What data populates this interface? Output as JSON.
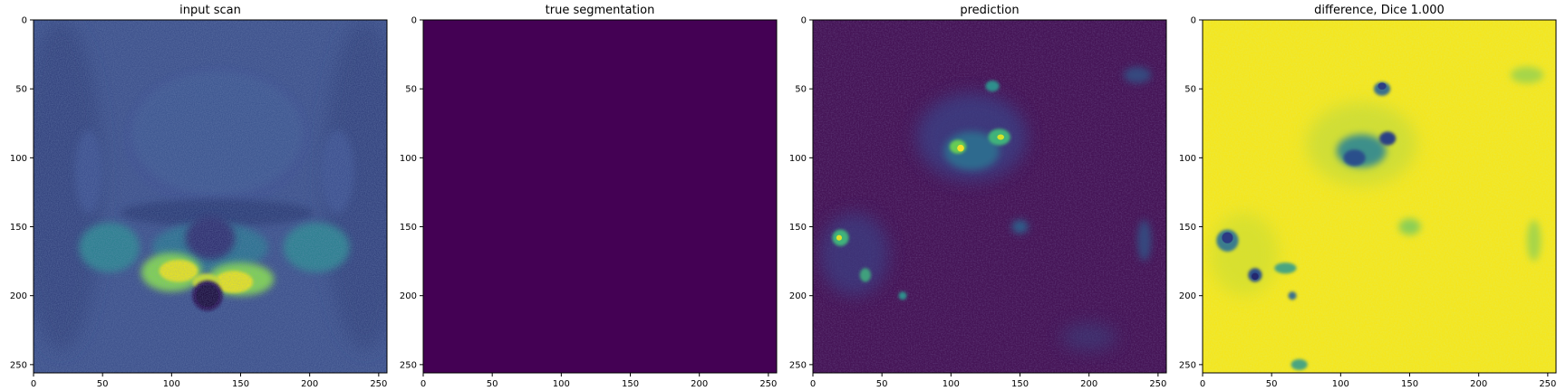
{
  "colors": {
    "viridis_dark": "#440154",
    "viridis_blue": "#3b528b",
    "viridis_teal": "#21918c",
    "viridis_green": "#5ec962",
    "viridis_yellow": "#fde725",
    "frame": "#000000",
    "background": "#ffffff"
  },
  "chart_data": [
    {
      "type": "heatmap",
      "title": "input scan",
      "xlabel": "",
      "ylabel": "",
      "xlim": [
        0,
        256
      ],
      "ylim": [
        256,
        0
      ],
      "xticks": [
        0,
        50,
        100,
        150,
        200,
        250
      ],
      "yticks": [
        0,
        50,
        100,
        150,
        200,
        250
      ],
      "colormap": "viridis",
      "content": "mri"
    },
    {
      "type": "heatmap",
      "title": "true segmentation",
      "xlabel": "",
      "ylabel": "",
      "xlim": [
        0,
        256
      ],
      "ylim": [
        256,
        0
      ],
      "xticks": [
        0,
        50,
        100,
        150,
        200,
        250
      ],
      "yticks": [
        0,
        50,
        100,
        150,
        200,
        250
      ],
      "colormap": "viridis",
      "content": "uniform-zero"
    },
    {
      "type": "heatmap",
      "title": "prediction",
      "xlabel": "",
      "ylabel": "",
      "xlim": [
        0,
        256
      ],
      "ylim": [
        256,
        0
      ],
      "xticks": [
        0,
        50,
        100,
        150,
        200,
        250
      ],
      "yticks": [
        0,
        50,
        100,
        150,
        200,
        250
      ],
      "colormap": "viridis",
      "content": "prediction"
    },
    {
      "type": "heatmap",
      "title": "difference, Dice 1.000",
      "xlabel": "",
      "ylabel": "",
      "xlim": [
        0,
        256
      ],
      "ylim": [
        256,
        0
      ],
      "xticks": [
        0,
        50,
        100,
        150,
        200,
        250
      ],
      "yticks": [
        0,
        50,
        100,
        150,
        200,
        250
      ],
      "colormap": "viridis",
      "content": "difference"
    }
  ]
}
